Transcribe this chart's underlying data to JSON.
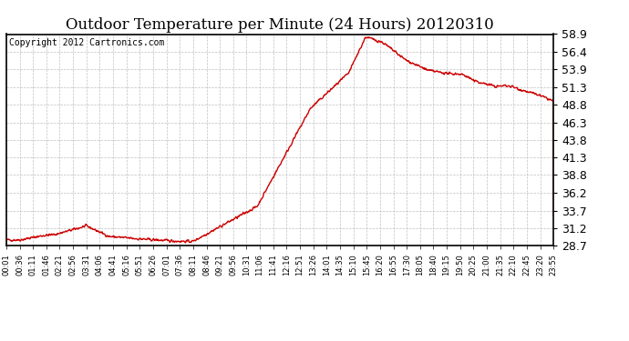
{
  "title": "Outdoor Temperature per Minute (24 Hours) 20120310",
  "copyright": "Copyright 2012 Cartronics.com",
  "line_color": "#cc0000",
  "background_color": "#ffffff",
  "plot_background": "#ffffff",
  "grid_color": "#b0b0b0",
  "ylim": [
    28.7,
    58.9
  ],
  "yticks": [
    28.7,
    31.2,
    33.7,
    36.2,
    38.8,
    41.3,
    43.8,
    46.3,
    48.8,
    51.3,
    53.9,
    56.4,
    58.9
  ],
  "xtick_labels": [
    "00:01",
    "00:36",
    "01:11",
    "01:46",
    "02:21",
    "02:56",
    "03:31",
    "04:06",
    "04:41",
    "05:16",
    "05:51",
    "06:26",
    "07:01",
    "07:36",
    "08:11",
    "08:46",
    "09:21",
    "09:56",
    "10:31",
    "11:06",
    "11:41",
    "12:16",
    "12:51",
    "13:26",
    "14:01",
    "14:35",
    "15:10",
    "15:45",
    "16:20",
    "16:55",
    "17:30",
    "18:05",
    "18:40",
    "19:15",
    "19:50",
    "20:25",
    "21:00",
    "21:35",
    "22:10",
    "22:45",
    "23:20",
    "23:55"
  ],
  "line_width": 1.0,
  "title_fontsize": 12,
  "copyright_fontsize": 7,
  "ytick_fontsize": 9,
  "xtick_fontsize": 6
}
